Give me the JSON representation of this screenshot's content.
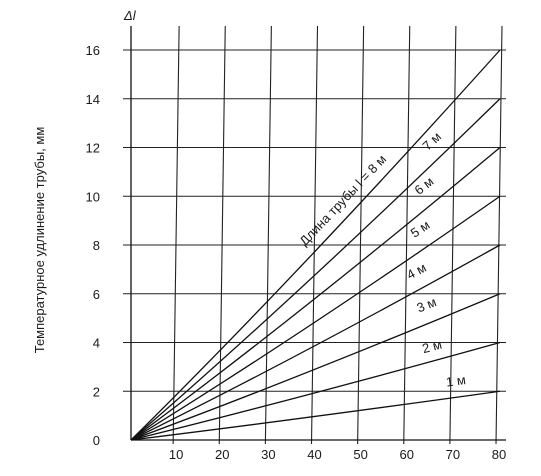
{
  "chart_data": {
    "type": "line",
    "title": "",
    "ylabel": "Температурное удлинение трубы, мм",
    "y_symbol": "Δl",
    "xlabel": "",
    "xlim": [
      0,
      80
    ],
    "ylim": [
      0,
      16
    ],
    "x_ticks": [
      10,
      20,
      30,
      40,
      50,
      60,
      70,
      80
    ],
    "y_ticks": [
      0,
      2,
      4,
      6,
      8,
      10,
      12,
      14,
      16
    ],
    "grid": true,
    "series": [
      {
        "name": "1 м",
        "x": [
          0,
          80
        ],
        "y": [
          0,
          2.0
        ]
      },
      {
        "name": "2 м",
        "x": [
          0,
          80
        ],
        "y": [
          0,
          4.0
        ]
      },
      {
        "name": "3 м",
        "x": [
          0,
          80
        ],
        "y": [
          0,
          6.0
        ]
      },
      {
        "name": "4 м",
        "x": [
          0,
          80
        ],
        "y": [
          0,
          8.0
        ]
      },
      {
        "name": "5 м",
        "x": [
          0,
          80
        ],
        "y": [
          0,
          10.0
        ]
      },
      {
        "name": "6 м",
        "x": [
          0,
          80
        ],
        "y": [
          0,
          12.0
        ]
      },
      {
        "name": "7 м",
        "x": [
          0,
          80
        ],
        "y": [
          0,
          14.0
        ]
      },
      {
        "name": "Длина трубы l = 8 м",
        "x": [
          0,
          80
        ],
        "y": [
          0,
          16.0
        ]
      }
    ]
  }
}
